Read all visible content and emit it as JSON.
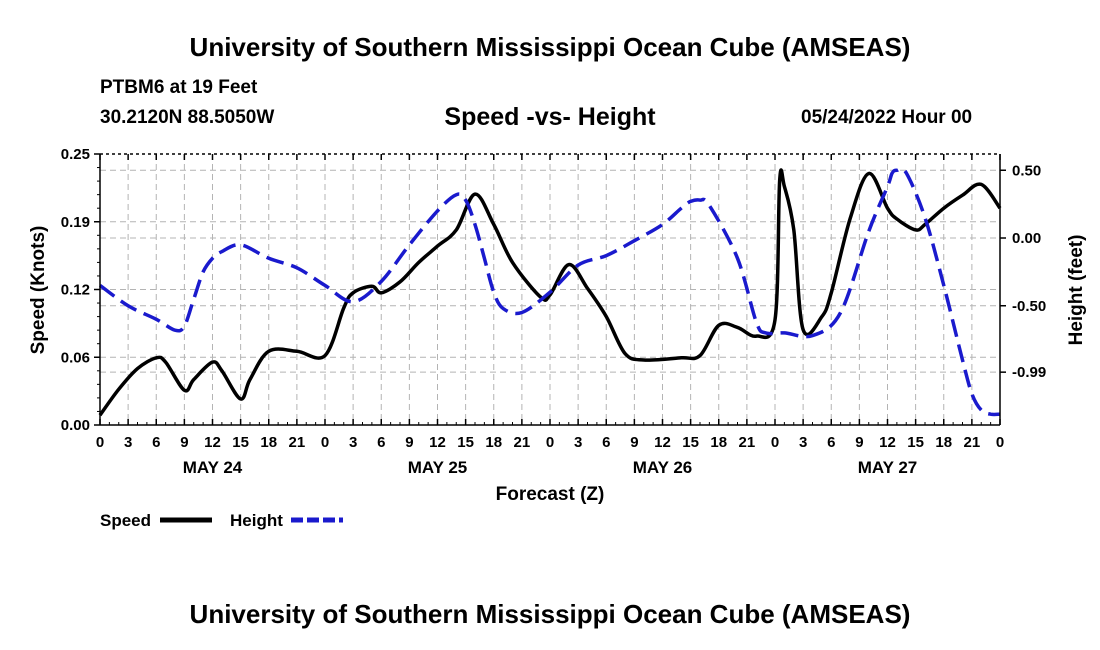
{
  "header": {
    "title": "University of Southern Mississippi Ocean Cube (AMSEAS)",
    "station": "PTBM6 at 19 Feet",
    "location": "30.2120N  88.5050W",
    "date": "05/24/2022 Hour 00"
  },
  "footer": {
    "title": "University of Southern Mississippi Ocean Cube (AMSEAS)"
  },
  "chart_data": {
    "type": "line",
    "title": "Speed -vs- Height",
    "xlabel": "Forecast (Z)",
    "ylabel_left": "Speed (Knots)",
    "ylabel_right": "Height (feet)",
    "xlim": [
      0,
      96
    ],
    "ylim_left": [
      0.0,
      0.25
    ],
    "ylim_right": [
      -1.38,
      0.62
    ],
    "left_ticks": [
      "0.00",
      "0.06",
      "0.12",
      "0.19",
      "0.25"
    ],
    "left_tick_values": [
      0.0,
      0.0625,
      0.125,
      0.1875,
      0.25
    ],
    "right_ticks": [
      "-0.99",
      "-0.50",
      "0.00",
      "0.50"
    ],
    "right_tick_values": [
      -0.99,
      -0.5,
      0.0,
      0.5
    ],
    "x_tick_labels": [
      "0",
      "3",
      "6",
      "9",
      "12",
      "15",
      "18",
      "21",
      "0",
      "3",
      "6",
      "9",
      "12",
      "15",
      "18",
      "21",
      "0",
      "3",
      "6",
      "9",
      "12",
      "15",
      "18",
      "21",
      "0",
      "3",
      "6",
      "9",
      "12",
      "15",
      "18",
      "21",
      "0"
    ],
    "x_tick_hours": [
      0,
      3,
      6,
      9,
      12,
      15,
      18,
      21,
      24,
      27,
      30,
      33,
      36,
      39,
      42,
      45,
      48,
      51,
      54,
      57,
      60,
      63,
      66,
      69,
      72,
      75,
      78,
      81,
      84,
      87,
      90,
      93,
      96
    ],
    "day_labels": [
      "MAY 24",
      "MAY 25",
      "MAY 26",
      "MAY 27"
    ],
    "day_hours": [
      12,
      36,
      60,
      84
    ],
    "grid": true,
    "legend": [
      "Speed",
      "Height"
    ],
    "series": [
      {
        "name": "Speed",
        "axis": "left",
        "color": "#000000",
        "dash": "solid",
        "x": [
          0,
          2,
          4,
          6,
          7,
          9,
          10,
          12,
          13,
          15,
          16,
          18,
          21,
          24,
          26,
          27,
          29,
          30,
          32,
          34,
          36,
          38,
          40,
          42,
          44,
          47,
          48,
          50,
          52,
          54,
          56,
          58,
          62,
          64,
          66,
          68,
          70,
          72,
          72.5,
          73,
          74,
          75,
          77,
          78,
          80,
          82,
          84,
          85,
          87,
          88,
          90,
          92,
          94,
          96
        ],
        "values": [
          0.009,
          0.033,
          0.052,
          0.062,
          0.058,
          0.032,
          0.042,
          0.058,
          0.05,
          0.024,
          0.042,
          0.068,
          0.068,
          0.064,
          0.108,
          0.122,
          0.128,
          0.122,
          0.132,
          0.15,
          0.165,
          0.18,
          0.213,
          0.185,
          0.15,
          0.118,
          0.12,
          0.148,
          0.126,
          0.1,
          0.066,
          0.06,
          0.062,
          0.064,
          0.092,
          0.09,
          0.082,
          0.097,
          0.226,
          0.22,
          0.18,
          0.088,
          0.1,
          0.122,
          0.19,
          0.232,
          0.2,
          0.19,
          0.18,
          0.185,
          0.2,
          0.212,
          0.222,
          0.2
        ]
      },
      {
        "name": "Height",
        "axis": "right",
        "color": "#1a1acd",
        "dash": "dashed",
        "x": [
          0,
          3,
          6,
          8,
          9,
          10,
          11,
          12,
          13,
          15,
          18,
          21,
          24,
          27,
          30,
          33,
          36,
          38,
          39,
          40,
          41,
          42,
          43,
          45,
          48,
          51,
          54,
          57,
          60,
          62,
          63,
          64,
          65,
          68,
          70,
          71,
          73,
          76,
          79,
          82,
          84,
          84.5,
          85,
          86,
          88,
          90,
          92,
          93,
          94,
          95,
          96
        ],
        "values": [
          -0.35,
          -0.5,
          -0.6,
          -0.68,
          -0.65,
          -0.45,
          -0.25,
          -0.15,
          -0.1,
          -0.05,
          -0.15,
          -0.22,
          -0.35,
          -0.47,
          -0.32,
          -0.05,
          0.2,
          0.32,
          0.28,
          0.1,
          -0.15,
          -0.4,
          -0.52,
          -0.55,
          -0.4,
          -0.2,
          -0.13,
          -0.02,
          0.1,
          0.22,
          0.27,
          0.28,
          0.24,
          -0.15,
          -0.62,
          -0.7,
          -0.7,
          -0.72,
          -0.55,
          0.05,
          0.38,
          0.48,
          0.5,
          0.48,
          0.15,
          -0.35,
          -0.9,
          -1.15,
          -1.27,
          -1.3,
          -1.3
        ]
      }
    ]
  }
}
